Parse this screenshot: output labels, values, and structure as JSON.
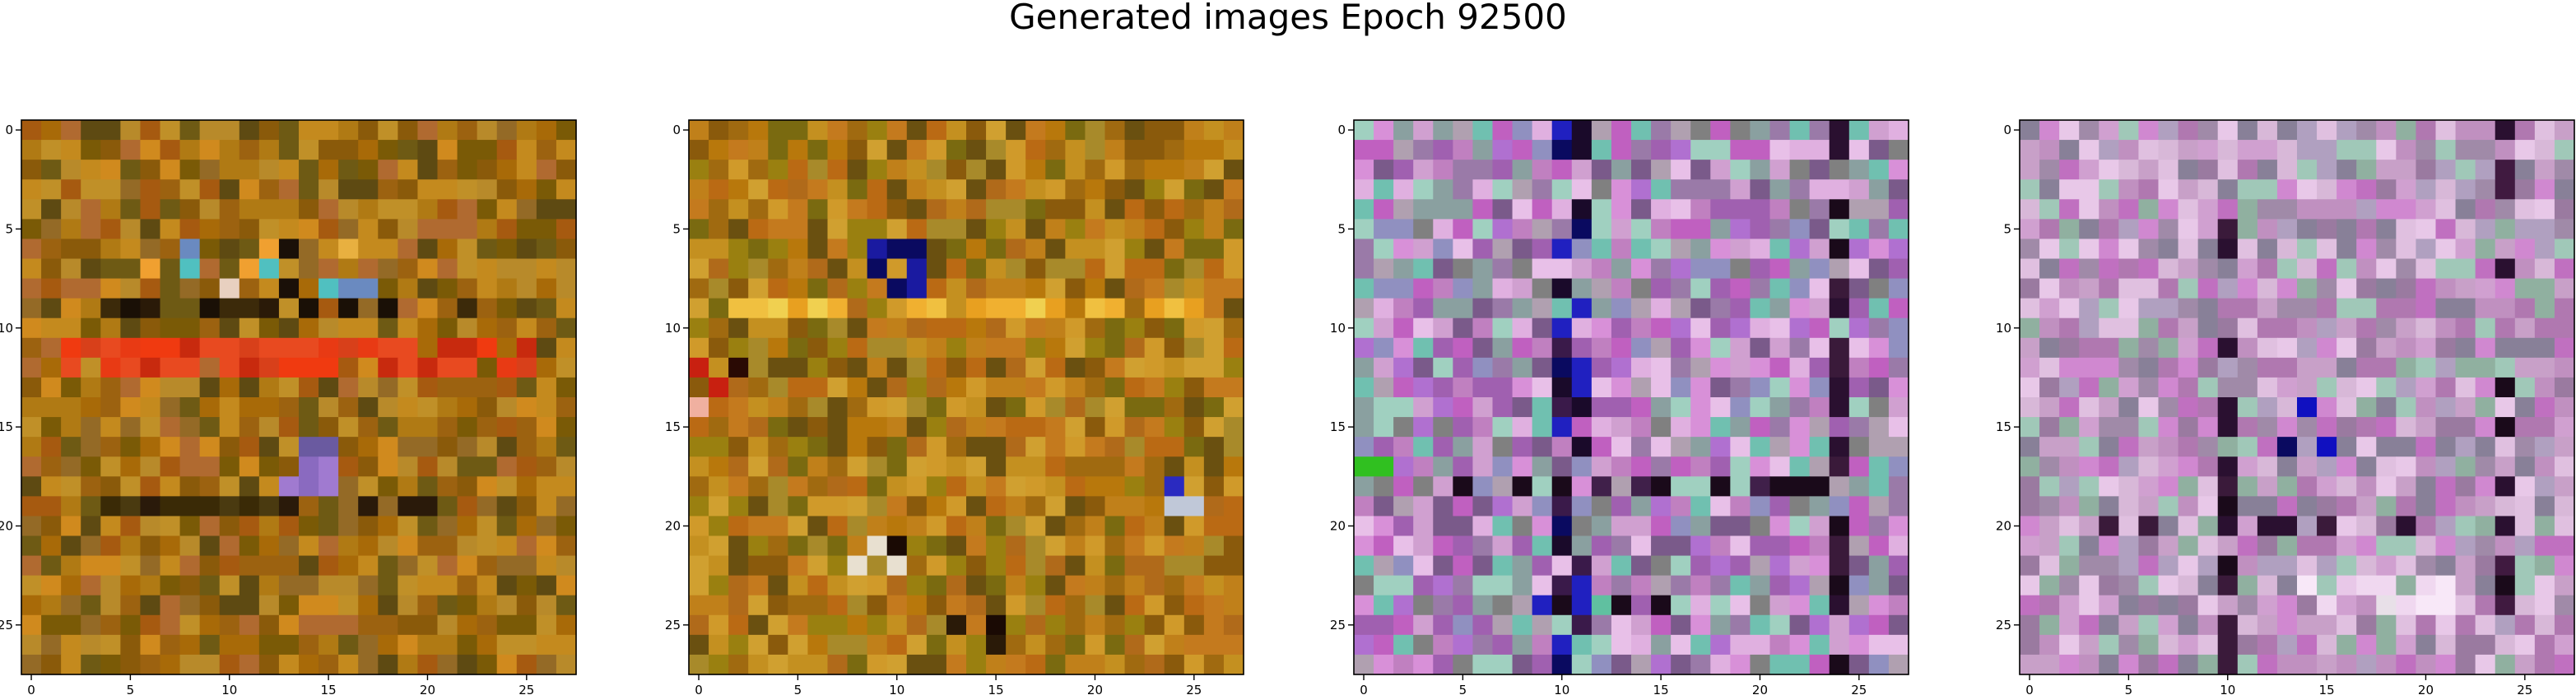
{
  "figure": {
    "title": "Generated images Epoch 92500"
  },
  "chart_data": [
    {
      "type": "heatmap",
      "rows": 28,
      "cols": 28,
      "x_ticks": [
        0,
        5,
        10,
        15,
        20,
        25
      ],
      "y_ticks": [
        0,
        5,
        10,
        15,
        20,
        25
      ],
      "x_tick_labels": [
        "0",
        "5",
        "10",
        "15",
        "20",
        "25"
      ],
      "y_tick_labels": [
        "0",
        "5",
        "10",
        "15",
        "20",
        "25"
      ],
      "xlim": [
        -0.5,
        27.5
      ],
      "ylim": [
        27.5,
        -0.5
      ],
      "palette": [
        "#a86a08",
        "#b07a14",
        "#8a5a0a",
        "#c48a1e",
        "#9c6210",
        "#7a5a06",
        "#b88a2a",
        "#c09028",
        "#6e5a14",
        "#946a26",
        "#a65a10",
        "#d08a1e",
        "#5e4a12",
        "#b06a30"
      ],
      "features": [
        {
          "rows": [
            11,
            12
          ],
          "cols": [
            2,
            25
          ],
          "colors": [
            "#e83a14",
            "#f03a10",
            "#d8401a",
            "#e84a20",
            "#c82a0e"
          ],
          "density": 0.85
        },
        {
          "rows": [
            9,
            9
          ],
          "cols": [
            3,
            24
          ],
          "colors": [
            "#1a1006",
            "#2a1a08",
            "#3c2a0a"
          ],
          "density": 0.5
        },
        {
          "rows": [
            19,
            19
          ],
          "cols": [
            3,
            23
          ],
          "colors": [
            "#3a2a06",
            "#2a1a0a",
            "#4a3a10"
          ],
          "density": 0.5
        },
        {
          "rows": [
            6,
            8
          ],
          "cols": [
            6,
            18
          ],
          "colors": [
            "#f0a030",
            "#e8b040",
            "#6a8ac0",
            "#e8d0c0",
            "#1a1008",
            "#50c0c0"
          ],
          "density": 0.35
        },
        {
          "rows": [
            16,
            18
          ],
          "cols": [
            13,
            15
          ],
          "colors": [
            "#8a6ac0",
            "#6a5aa0",
            "#a07ad0"
          ],
          "density": 0.6
        }
      ]
    },
    {
      "type": "heatmap",
      "rows": 28,
      "cols": 28,
      "x_ticks": [
        0,
        5,
        10,
        15,
        20,
        25
      ],
      "y_ticks": [
        0,
        5,
        10,
        15,
        20,
        25
      ],
      "x_tick_labels": [
        "0",
        "5",
        "10",
        "15",
        "20",
        "25"
      ],
      "y_tick_labels": [
        "0",
        "5",
        "10",
        "15",
        "20",
        "25"
      ],
      "xlim": [
        -0.5,
        27.5
      ],
      "ylim": [
        27.5,
        -0.5
      ],
      "palette": [
        "#b8780c",
        "#c49020",
        "#a06a10",
        "#d0a030",
        "#8a5a0c",
        "#9a8010",
        "#b06a1a",
        "#c47a1e",
        "#7a6a10",
        "#a88a2a",
        "#d09a2a",
        "#c0801a",
        "#6a5010",
        "#ba6a14"
      ],
      "features": [
        {
          "rows": [
            9,
            9
          ],
          "cols": [
            2,
            25
          ],
          "colors": [
            "#f0b030",
            "#f0c040",
            "#e8a020",
            "#f0d050"
          ],
          "density": 0.7
        },
        {
          "rows": [
            12,
            14
          ],
          "cols": [
            0,
            2
          ],
          "colors": [
            "#e82a14",
            "#f0b0a0",
            "#2a0a04",
            "#c82010"
          ],
          "density": 0.6
        },
        {
          "rows": [
            6,
            8
          ],
          "cols": [
            9,
            11
          ],
          "colors": [
            "#1a1aa0",
            "#0a0a60",
            "#e8d8c0"
          ],
          "density": 0.5
        },
        {
          "rows": [
            18,
            19
          ],
          "cols": [
            23,
            25
          ],
          "colors": [
            "#1a1aa0",
            "#2a2ac0",
            "#c0c8d8"
          ],
          "density": 0.5
        },
        {
          "rows": [
            21,
            22
          ],
          "cols": [
            7,
            10
          ],
          "colors": [
            "#50a0d0",
            "#e8e0d0",
            "#1a0a04"
          ],
          "density": 0.5
        },
        {
          "rows": [
            25,
            26
          ],
          "cols": [
            13,
            15
          ],
          "colors": [
            "#1a0a04",
            "#2a1a08"
          ],
          "density": 0.6
        }
      ]
    },
    {
      "type": "heatmap",
      "rows": 28,
      "cols": 28,
      "x_ticks": [
        0,
        5,
        10,
        15,
        20,
        25
      ],
      "y_ticks": [
        0,
        5,
        10,
        15,
        20,
        25
      ],
      "x_tick_labels": [
        "0",
        "5",
        "10",
        "15",
        "20",
        "25"
      ],
      "y_tick_labels": [
        "0",
        "5",
        "10",
        "15",
        "20",
        "25"
      ],
      "xlim": [
        -0.5,
        27.5
      ],
      "ylim": [
        27.5,
        -0.5
      ],
      "palette": [
        "#c080c0",
        "#a060b0",
        "#d0a0d0",
        "#9a7aa8",
        "#b070d0",
        "#e0b0e0",
        "#8aa0a0",
        "#70c0b0",
        "#c060c0",
        "#d890d8",
        "#9090c0",
        "#b0a0b0",
        "#7a5a8a",
        "#e8c0e8",
        "#a0d0c0",
        "#808080"
      ],
      "features": [
        {
          "rows": [
            0,
            27
          ],
          "cols": [
            24,
            24
          ],
          "colors": [
            "#1a0a1a",
            "#2a1030",
            "#3a1a3a"
          ],
          "density": 0.55
        },
        {
          "rows": [
            0,
            27
          ],
          "cols": [
            10,
            11
          ],
          "colors": [
            "#1a0a2a",
            "#0a0a60",
            "#2020c0",
            "#3a1a4a"
          ],
          "density": 0.35
        },
        {
          "rows": [
            18,
            18
          ],
          "cols": [
            4,
            24
          ],
          "colors": [
            "#1a0a1a",
            "#2a1030",
            "#40204a"
          ],
          "density": 0.55
        },
        {
          "rows": [
            24,
            24
          ],
          "cols": [
            9,
            15
          ],
          "colors": [
            "#1a0a1a",
            "#2020c0",
            "#104010",
            "#60c0a0"
          ],
          "density": 0.5
        },
        {
          "rows": [
            17,
            17
          ],
          "cols": [
            0,
            1
          ],
          "colors": [
            "#30c020",
            "#40d030"
          ],
          "density": 0.9
        }
      ]
    },
    {
      "type": "heatmap",
      "rows": 28,
      "cols": 28,
      "x_ticks": [
        0,
        5,
        10,
        15,
        20,
        25
      ],
      "y_ticks": [
        0,
        5,
        10,
        15,
        20,
        25
      ],
      "x_tick_labels": [
        "0",
        "5",
        "10",
        "15",
        "20",
        "25"
      ],
      "y_tick_labels": [
        "0",
        "5",
        "10",
        "15",
        "20",
        "25"
      ],
      "xlim": [
        -0.5,
        27.5
      ],
      "ylim": [
        27.5,
        -0.5
      ],
      "palette": [
        "#c090c0",
        "#d0a0d0",
        "#b078b0",
        "#e0c0e0",
        "#a08aa8",
        "#c070c0",
        "#90b0a0",
        "#d8b8d8",
        "#b0a0c0",
        "#e8c8e8",
        "#9a7aa0",
        "#c8a0c8",
        "#a0c8b8",
        "#d088d0",
        "#888098"
      ],
      "features": [
        {
          "rows": [
            0,
            27
          ],
          "cols": [
            24,
            24
          ],
          "colors": [
            "#1a0a1a",
            "#2a1030",
            "#401a40"
          ],
          "density": 0.5
        },
        {
          "rows": [
            0,
            27
          ],
          "cols": [
            10,
            10
          ],
          "colors": [
            "#1a0a1a",
            "#2a1030",
            "#3a1a3a"
          ],
          "density": 0.45
        },
        {
          "rows": [
            20,
            20
          ],
          "cols": [
            3,
            24
          ],
          "colors": [
            "#1a0a1a",
            "#2a1030",
            "#3a1a3a"
          ],
          "density": 0.5
        },
        {
          "rows": [
            14,
            16
          ],
          "cols": [
            13,
            15
          ],
          "colors": [
            "#1010c0",
            "#2020a0",
            "#0a0a60"
          ],
          "density": 0.5
        },
        {
          "rows": [
            23,
            24
          ],
          "cols": [
            14,
            22
          ],
          "colors": [
            "#f0d8f0",
            "#e8e0e8",
            "#f8e8f8"
          ],
          "density": 0.6
        }
      ]
    }
  ]
}
